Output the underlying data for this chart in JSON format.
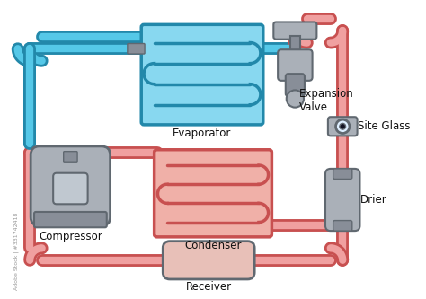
{
  "background_color": "#ffffff",
  "blue_pipe_color": "#55c8e8",
  "blue_pipe_outline": "#2288aa",
  "red_pipe_color": "#f0a0a0",
  "red_pipe_outline": "#c85050",
  "evap_fill": "#88d8f0",
  "evap_border": "#2288aa",
  "cond_fill": "#f0b0a8",
  "cond_border": "#c85050",
  "coil_blue": "#2288aa",
  "coil_red": "#c85050",
  "gray_light": "#aab0b8",
  "gray_mid": "#888e98",
  "gray_dark": "#606870",
  "receiver_fill": "#e8c0b8",
  "text_color": "#111111",
  "pipe_outer_lw": 10,
  "pipe_inner_lw": 6,
  "labels": {
    "evaporator": "Evaporator",
    "condenser": "Condenser",
    "compressor": "Compressor",
    "expansion_valve": "Expansion\nValve",
    "site_glass": "Site Glass",
    "drier": "Drier",
    "receiver": "Receiver"
  }
}
